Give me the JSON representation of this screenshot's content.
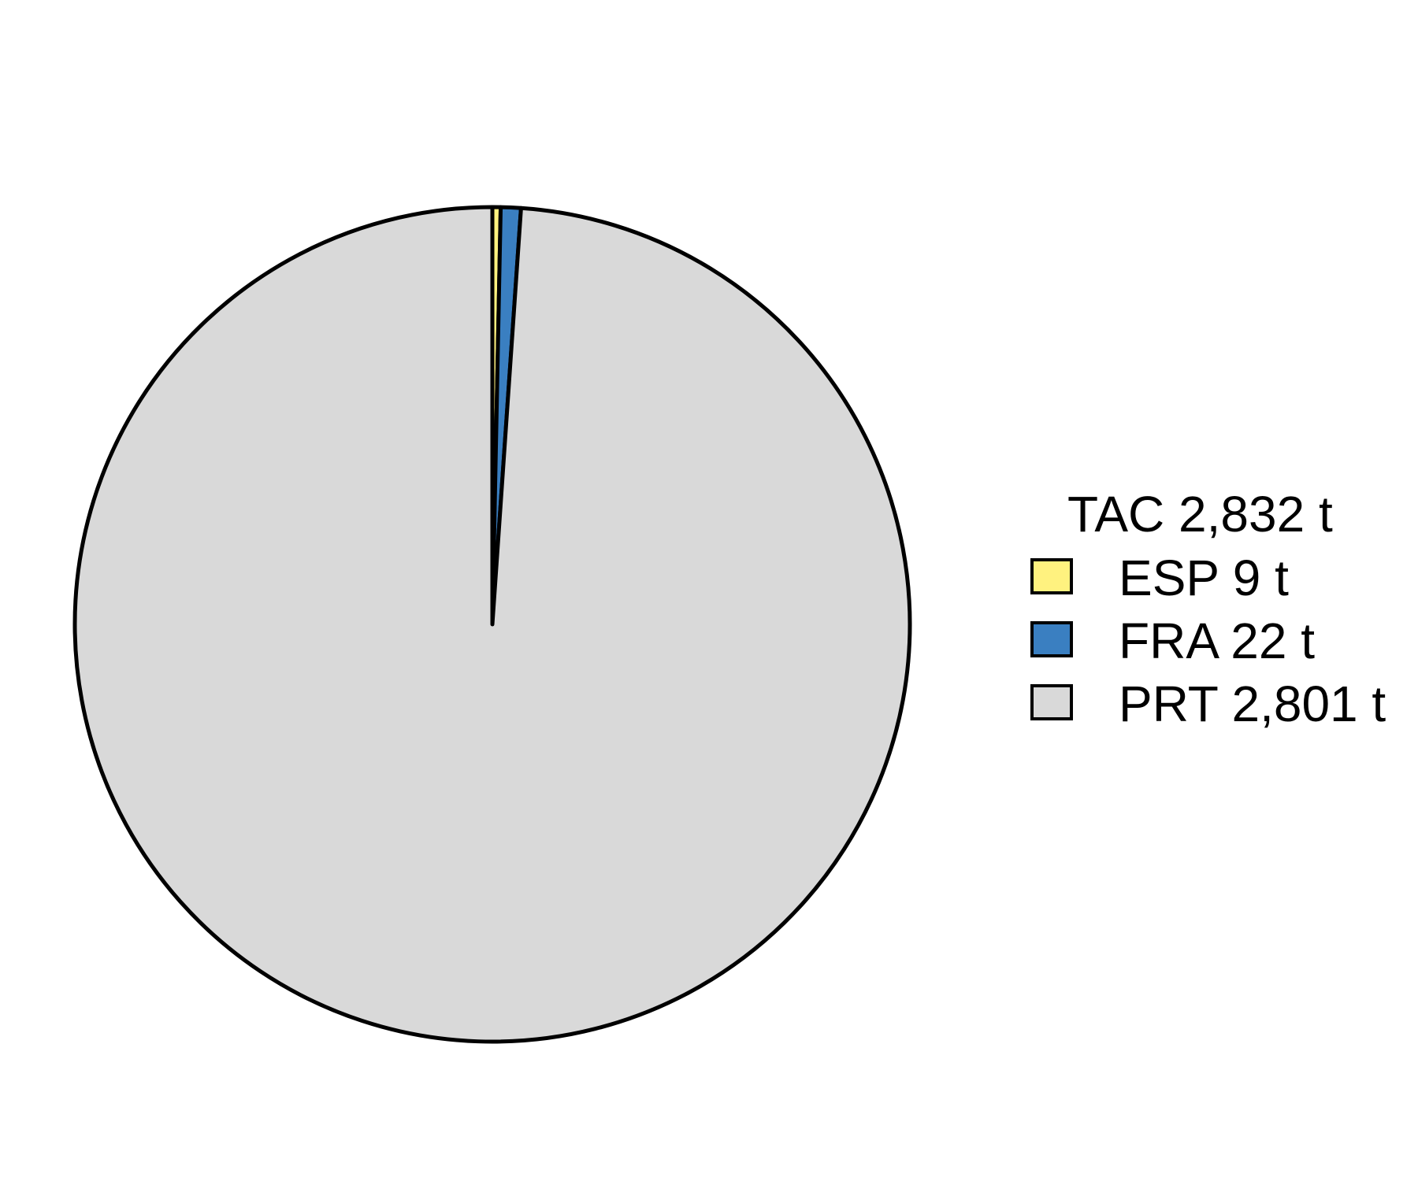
{
  "chart_data": {
    "type": "pie",
    "title": "",
    "legend_title": "TAC 2,832 t",
    "legend_position": "right",
    "start": "12 o'clock",
    "direction": "clockwise",
    "slices": [
      {
        "category": "ESP",
        "value": 9,
        "label": "ESP 9 t",
        "color": "#FFF27F"
      },
      {
        "category": "FRA",
        "value": 22,
        "label": "FRA 22 t",
        "color": "#3A7FC1"
      },
      {
        "category": "PRT",
        "value": 2801,
        "label": "PRT 2,801 t",
        "color": "#D9D9D9"
      }
    ],
    "outline_color": "#000000"
  }
}
